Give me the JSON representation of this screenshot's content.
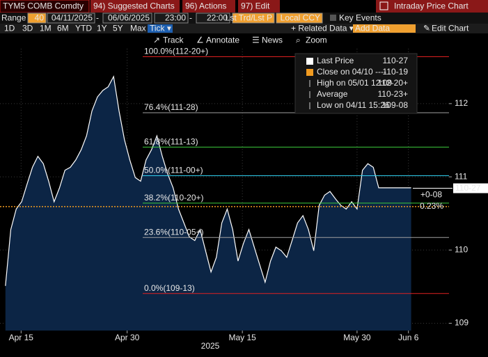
{
  "header": {
    "ticker": "TYM5 COMB Comdty",
    "menus": [
      "94) Suggested Charts",
      "96) Actions",
      "97) Edit"
    ],
    "page_title": "Intraday Price Chart"
  },
  "range_bar": {
    "label": "Range",
    "fields": [
      "40",
      "04/11/2025",
      "-",
      "06/06/2025",
      "23:00",
      "-",
      "22:00",
      "Lst Trd/Lst P",
      "Local CCY"
    ],
    "checkbox": "Key Events"
  },
  "period_bar": {
    "periods": [
      "1D",
      "3D",
      "1M",
      "6M",
      "YTD",
      "1Y",
      "5Y",
      "Max",
      "Tick ▾"
    ],
    "related": "+ Related Data ▾",
    "add_data": "Add Data",
    "edit_chart": "Edit Chart"
  },
  "tools": [
    "Track",
    "Annotate",
    "News",
    "Zoom"
  ],
  "chart_data": {
    "type": "line",
    "color": "#ffffff",
    "fill": "#0c2545",
    "x": [
      0,
      1,
      2,
      3,
      4,
      5,
      6,
      7,
      8,
      9,
      10,
      11,
      12,
      13,
      14,
      15,
      16,
      17,
      18,
      19,
      20,
      21,
      22,
      23,
      24,
      25,
      26,
      27,
      28,
      29,
      30,
      31,
      32,
      33,
      34,
      35,
      36,
      37,
      38,
      39,
      40,
      41,
      42,
      43,
      44,
      45,
      46,
      47,
      48,
      49,
      50,
      51,
      52,
      53,
      54,
      55,
      56,
      57,
      58,
      59,
      60,
      61,
      62,
      63,
      64,
      65,
      66,
      67,
      68,
      69,
      70,
      71,
      72,
      73,
      74,
      75
    ],
    "values": [
      109.51,
      110.28,
      110.56,
      110.66,
      110.9,
      111.13,
      111.28,
      111.18,
      110.94,
      110.66,
      110.85,
      111.09,
      111.13,
      111.23,
      111.37,
      111.56,
      111.9,
      112.09,
      112.18,
      112.23,
      112.37,
      111.9,
      111.51,
      111.23,
      110.99,
      110.94,
      111.23,
      111.37,
      111.56,
      111.28,
      111.04,
      110.85,
      110.56,
      110.37,
      110.18,
      110.13,
      110.28,
      109.99,
      109.7,
      109.9,
      110.37,
      110.56,
      110.28,
      109.85,
      110.09,
      110.28,
      110.04,
      109.8,
      109.56,
      109.85,
      110.04,
      109.99,
      109.9,
      110.13,
      110.37,
      110.47,
      110.28,
      109.99,
      110.61,
      110.75,
      110.8,
      110.7,
      110.61,
      110.56,
      110.66,
      110.56,
      111.09,
      111.18,
      111.13,
      110.85,
      110.85,
      110.85,
      110.85,
      110.85,
      110.85,
      110.85
    ],
    "xlim": [
      -1,
      82
    ],
    "ylim": [
      108.9,
      112.75
    ],
    "xticks": [
      {
        "value": 2.9,
        "label": "Apr 15"
      },
      {
        "value": 22.5,
        "label": "Apr 30"
      },
      {
        "value": 43.8,
        "label": "May 15"
      },
      {
        "value": 65.0,
        "label": "May 30"
      },
      {
        "value": 74.5,
        "label": "Jun 6"
      }
    ],
    "yticks": [
      109,
      110,
      111,
      112
    ],
    "xlabel": "2025",
    "levels": [
      {
        "label": "100.0%(112-20+)",
        "value": 112.640625,
        "color": "#e02020"
      },
      {
        "label": "76.4%(111-28)",
        "value": 111.875,
        "color": "#a0a0a0"
      },
      {
        "label": "61.8%(111-13)",
        "value": 111.40625,
        "color": "#3ccc3c"
      },
      {
        "label": "50.0%(111-00+)",
        "value": 111.015625,
        "color": "#30d0f0"
      },
      {
        "label": "38.2%(110-20+)",
        "value": 110.640625,
        "color": "#3ccc3c"
      },
      {
        "label": "23.6%(110-05+)",
        "value": 110.171875,
        "color": "#a0a0a0"
      },
      {
        "label": "0.0%(109-13)",
        "value": 109.40625,
        "color": "#e02020"
      }
    ],
    "close_line": {
      "value": 110.59375,
      "color": "#f09a20"
    },
    "last_price": {
      "value": 110.84375,
      "label": "110-27"
    },
    "change": "+0-08",
    "change_pct": "0.23%",
    "legend": [
      {
        "name": "Last Price",
        "value": "110-27",
        "color": "#ffffff"
      },
      {
        "name": "Close on 04/10 ----",
        "value": "110-19",
        "color": "#f09a20"
      },
      {
        "name": "High on 05/01 12:09",
        "value": "112-20+",
        "color": "#cccccc"
      },
      {
        "name": "Average",
        "value": "110-23+",
        "color": "#cccccc"
      },
      {
        "name": "Low on 04/11 15:26",
        "value": "109-08",
        "color": "#cccccc"
      }
    ]
  }
}
